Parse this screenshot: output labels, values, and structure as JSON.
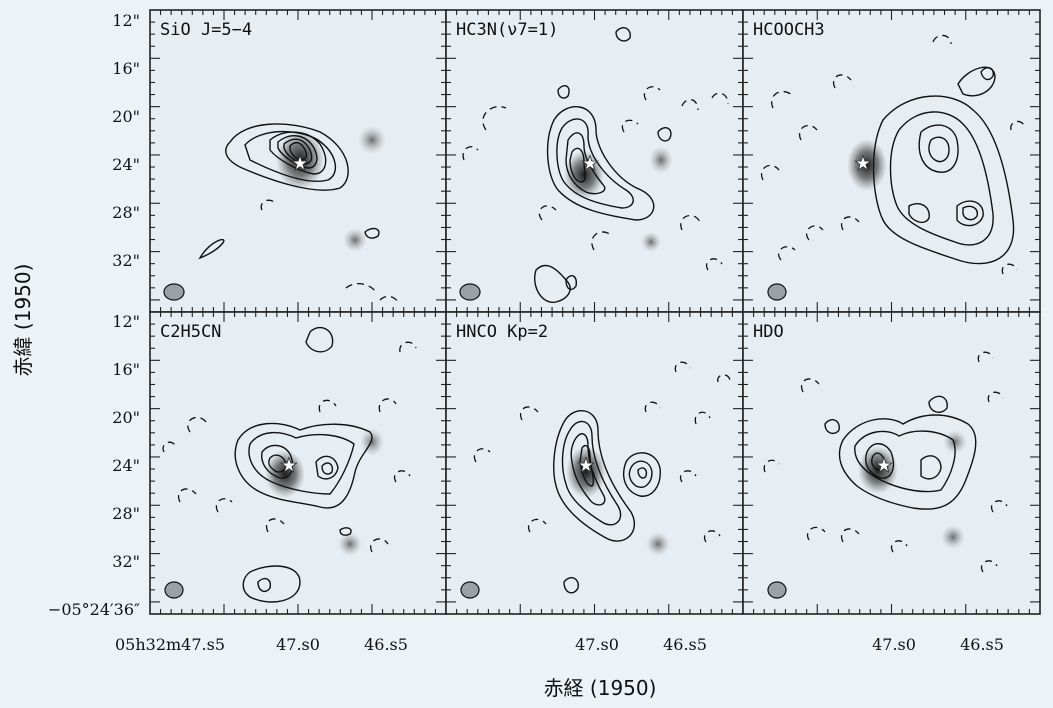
{
  "figure": {
    "y_axis_title": "赤緯 (1950)",
    "x_axis_title": "赤経 (1950)",
    "y_ticks": [
      "12\"",
      "16\"",
      "20\"",
      "24\"",
      "28\"",
      "32\""
    ],
    "y_bottom_label": "−05°24′36″",
    "x_ticks_first": [
      "05h32m47.s5",
      "47.s0",
      "46.s5"
    ],
    "x_ticks_other": [
      "47.s0",
      "46.s5"
    ]
  },
  "panels": [
    {
      "id": "sio",
      "title": "SiO J=5−4"
    },
    {
      "id": "hc3n",
      "title": "HC3N(ν7=1)"
    },
    {
      "id": "hcooch3",
      "title": "HCOOCH3"
    },
    {
      "id": "c2h5cn",
      "title": "C2H5CN"
    },
    {
      "id": "hnco",
      "title": "HNCO Kp=2"
    },
    {
      "id": "hdo",
      "title": "HDO"
    }
  ]
}
